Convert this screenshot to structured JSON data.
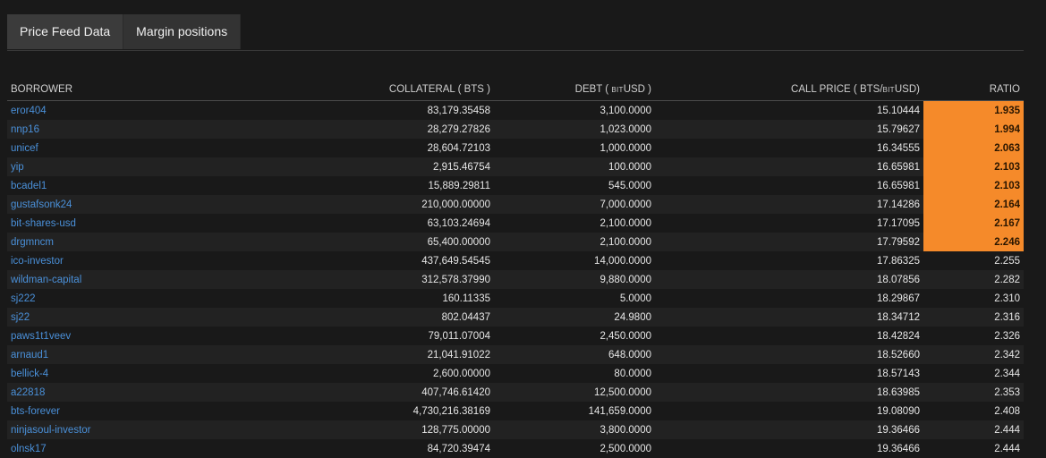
{
  "tabs": [
    {
      "label": "Price Feed Data"
    },
    {
      "label": "Margin positions"
    }
  ],
  "table": {
    "headers": {
      "borrower": "BORROWER",
      "collateral": "COLLATERAL ( BTS )",
      "debt_prefix": "DEBT ( ",
      "debt_small": "BIT",
      "debt_suffix": "USD )",
      "call_prefix": "CALL PRICE ( BTS/",
      "call_small": "BIT",
      "call_suffix": "USD)",
      "ratio": "RATIO"
    },
    "rows": [
      {
        "borrower": "eror404",
        "collateral": "83,179.35458",
        "debt": "3,100.0000",
        "call_price": "15.10444",
        "ratio": "1.935",
        "highlight": true
      },
      {
        "borrower": "nnp16",
        "collateral": "28,279.27826",
        "debt": "1,023.0000",
        "call_price": "15.79627",
        "ratio": "1.994",
        "highlight": true
      },
      {
        "borrower": "unicef",
        "collateral": "28,604.72103",
        "debt": "1,000.0000",
        "call_price": "16.34555",
        "ratio": "2.063",
        "highlight": true
      },
      {
        "borrower": "yip",
        "collateral": "2,915.46754",
        "debt": "100.0000",
        "call_price": "16.65981",
        "ratio": "2.103",
        "highlight": true
      },
      {
        "borrower": "bcadel1",
        "collateral": "15,889.29811",
        "debt": "545.0000",
        "call_price": "16.65981",
        "ratio": "2.103",
        "highlight": true
      },
      {
        "borrower": "gustafsonk24",
        "collateral": "210,000.00000",
        "debt": "7,000.0000",
        "call_price": "17.14286",
        "ratio": "2.164",
        "highlight": true
      },
      {
        "borrower": "bit-shares-usd",
        "collateral": "63,103.24694",
        "debt": "2,100.0000",
        "call_price": "17.17095",
        "ratio": "2.167",
        "highlight": true
      },
      {
        "borrower": "drgmncm",
        "collateral": "65,400.00000",
        "debt": "2,100.0000",
        "call_price": "17.79592",
        "ratio": "2.246",
        "highlight": true
      },
      {
        "borrower": "ico-investor",
        "collateral": "437,649.54545",
        "debt": "14,000.0000",
        "call_price": "17.86325",
        "ratio": "2.255",
        "highlight": false
      },
      {
        "borrower": "wildman-capital",
        "collateral": "312,578.37990",
        "debt": "9,880.0000",
        "call_price": "18.07856",
        "ratio": "2.282",
        "highlight": false
      },
      {
        "borrower": "sj222",
        "collateral": "160.11335",
        "debt": "5.0000",
        "call_price": "18.29867",
        "ratio": "2.310",
        "highlight": false
      },
      {
        "borrower": "sj22",
        "collateral": "802.04437",
        "debt": "24.9800",
        "call_price": "18.34712",
        "ratio": "2.316",
        "highlight": false
      },
      {
        "borrower": "paws1t1veev",
        "collateral": "79,011.07004",
        "debt": "2,450.0000",
        "call_price": "18.42824",
        "ratio": "2.326",
        "highlight": false
      },
      {
        "borrower": "arnaud1",
        "collateral": "21,041.91022",
        "debt": "648.0000",
        "call_price": "18.52660",
        "ratio": "2.342",
        "highlight": false
      },
      {
        "borrower": "bellick-4",
        "collateral": "2,600.00000",
        "debt": "80.0000",
        "call_price": "18.57143",
        "ratio": "2.344",
        "highlight": false
      },
      {
        "borrower": "a22818",
        "collateral": "407,746.61420",
        "debt": "12,500.0000",
        "call_price": "18.63985",
        "ratio": "2.353",
        "highlight": false
      },
      {
        "borrower": "bts-forever",
        "collateral": "4,730,216.38169",
        "debt": "141,659.0000",
        "call_price": "19.08090",
        "ratio": "2.408",
        "highlight": false
      },
      {
        "borrower": "ninjasoul-investor",
        "collateral": "128,775.00000",
        "debt": "3,800.0000",
        "call_price": "19.36466",
        "ratio": "2.444",
        "highlight": false
      },
      {
        "borrower": "olnsk17",
        "collateral": "84,720.39474",
        "debt": "2,500.0000",
        "call_price": "19.36466",
        "ratio": "2.444",
        "highlight": false
      }
    ]
  },
  "colors": {
    "background": "#191919",
    "link": "#4a90d9",
    "warning": "#f58a2a"
  }
}
